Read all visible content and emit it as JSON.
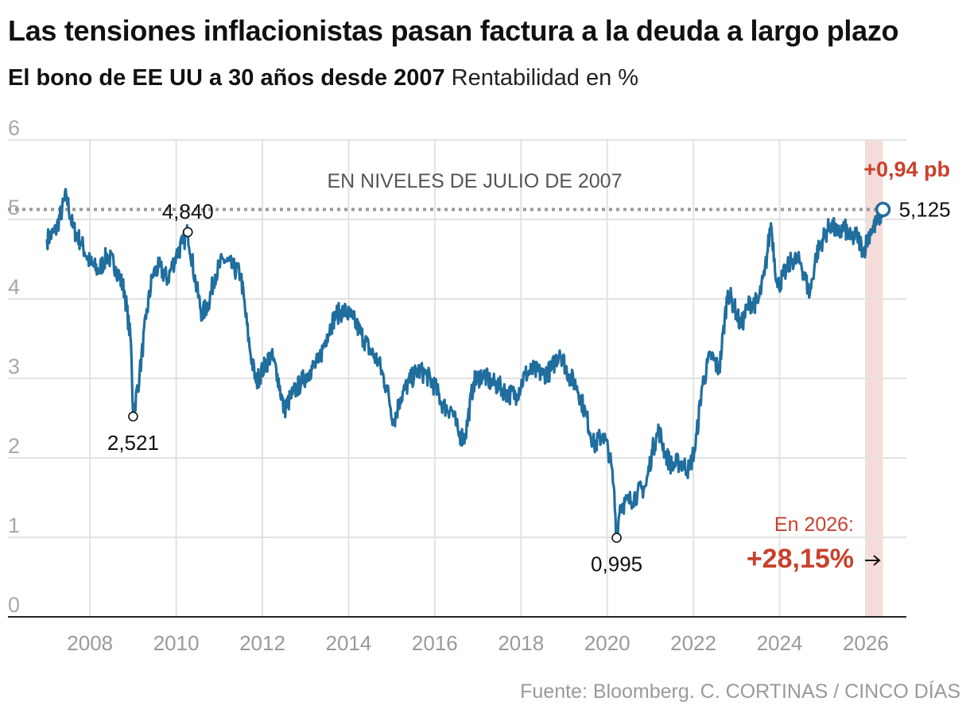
{
  "header": {
    "title": "Las tensiones inflacionistas pasan factura a la deuda a largo plazo",
    "subtitle_bold": "El bono de EE UU a 30 años desde 2007",
    "subtitle_unit": "Rentabilidad en %"
  },
  "source": "Fuente: Bloomberg. C. CORTINAS / CINCO DÍAS",
  "colors": {
    "line": "#1f6e9e",
    "accent": "#c8412e",
    "highlight_band": "#f6dcd8",
    "reference": "#9a9a9a",
    "grid": "#e2e2e2"
  },
  "chart_data": {
    "type": "line",
    "title": "Las tensiones inflacionistas pasan factura a la deuda a largo plazo",
    "ylabel": "Rentabilidad en %",
    "ylim": [
      0,
      6
    ],
    "xlim": [
      2007.0,
      2026.5
    ],
    "yticks": [
      0,
      1,
      2,
      3,
      4,
      5,
      6
    ],
    "xticks": [
      2008,
      2010,
      2012,
      2014,
      2016,
      2018,
      2020,
      2022,
      2024,
      2026
    ],
    "grid": true,
    "series": [
      {
        "x": [
          2007.0,
          2007.2,
          2007.45,
          2007.6,
          2007.8,
          2008.0,
          2008.2,
          2008.4,
          2008.6,
          2008.8,
          2008.95,
          2009.0,
          2009.15,
          2009.3,
          2009.45,
          2009.6,
          2009.8,
          2010.0,
          2010.15,
          2010.27,
          2010.45,
          2010.6,
          2010.75,
          2010.9,
          2011.1,
          2011.3,
          2011.5,
          2011.7,
          2011.85,
          2012.0,
          2012.2,
          2012.35,
          2012.5,
          2012.7,
          2012.9,
          2013.1,
          2013.3,
          2013.5,
          2013.7,
          2013.9,
          2014.1,
          2014.3,
          2014.5,
          2014.7,
          2014.9,
          2015.05,
          2015.2,
          2015.4,
          2015.6,
          2015.8,
          2016.0,
          2016.2,
          2016.4,
          2016.55,
          2016.7,
          2016.9,
          2017.1,
          2017.3,
          2017.5,
          2017.7,
          2017.9,
          2018.1,
          2018.3,
          2018.5,
          2018.7,
          2018.9,
          2019.1,
          2019.3,
          2019.5,
          2019.7,
          2019.9,
          2020.05,
          2020.15,
          2020.22,
          2020.3,
          2020.5,
          2020.7,
          2020.9,
          2021.05,
          2021.2,
          2021.35,
          2021.5,
          2021.7,
          2021.9,
          2022.05,
          2022.2,
          2022.4,
          2022.6,
          2022.8,
          2022.95,
          2023.1,
          2023.3,
          2023.5,
          2023.65,
          2023.8,
          2023.95,
          2024.15,
          2024.3,
          2024.5,
          2024.7,
          2024.85,
          2025.0,
          2025.2,
          2025.35,
          2025.5,
          2025.65,
          2025.8,
          2025.95,
          2026.1,
          2026.25,
          2026.4
        ],
        "y": [
          4.75,
          4.85,
          5.3,
          4.9,
          4.7,
          4.45,
          4.35,
          4.55,
          4.4,
          4.1,
          3.45,
          2.521,
          3.05,
          3.75,
          4.3,
          4.4,
          4.25,
          4.55,
          4.7,
          4.84,
          4.2,
          3.8,
          3.95,
          4.3,
          4.5,
          4.4,
          4.3,
          3.4,
          2.95,
          3.1,
          3.3,
          3.05,
          2.6,
          2.8,
          2.95,
          3.1,
          3.2,
          3.55,
          3.8,
          3.85,
          3.75,
          3.55,
          3.35,
          3.2,
          2.85,
          2.45,
          2.75,
          2.95,
          3.1,
          3.05,
          2.9,
          2.65,
          2.6,
          2.3,
          2.25,
          2.95,
          3.05,
          2.95,
          2.9,
          2.8,
          2.8,
          3.05,
          3.1,
          3.05,
          3.1,
          3.35,
          3.05,
          2.9,
          2.55,
          2.15,
          2.3,
          2.05,
          1.65,
          0.995,
          1.4,
          1.45,
          1.55,
          1.65,
          2.1,
          2.35,
          2.05,
          1.9,
          1.95,
          1.85,
          2.15,
          2.9,
          3.3,
          3.1,
          4.1,
          3.9,
          3.65,
          3.95,
          3.95,
          4.3,
          4.95,
          4.15,
          4.35,
          4.5,
          4.45,
          4.05,
          4.55,
          4.75,
          4.95,
          4.8,
          4.9,
          4.75,
          4.8,
          4.6,
          4.85,
          4.95,
          5.125
        ]
      }
    ],
    "reference_line": {
      "y": 5.125,
      "label": "EN NIVELES DE JULIO DE 2007"
    },
    "highlight_band": {
      "x0": 2026.0,
      "x1": 2026.4
    },
    "annotations": [
      {
        "x": 2009.0,
        "y": 2.521,
        "label": "2,521",
        "position": "below"
      },
      {
        "x": 2010.27,
        "y": 4.84,
        "label": "4,840",
        "position": "above"
      },
      {
        "x": 2020.22,
        "y": 0.995,
        "label": "0,995",
        "position": "below"
      },
      {
        "x": 2026.4,
        "y": 5.125,
        "label": "5,125",
        "position": "right"
      }
    ],
    "callout_top": "+0,94 pb",
    "callout_bottom": {
      "label": "En 2026:",
      "value": "+28,15%"
    }
  }
}
